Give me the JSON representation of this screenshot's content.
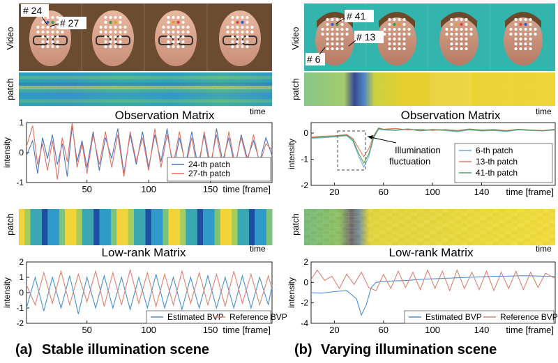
{
  "figure": {
    "left": {
      "video_label": "Video",
      "patch_label_1": "patch",
      "time_label_1": "time",
      "obs_title": "Observation Matrix",
      "patch_label_2": "patch",
      "time_label_2": "time",
      "lowrank_title": "Low-rank Matrix",
      "callouts": [
        "# 24",
        "# 27"
      ],
      "caption_tag": "(a)",
      "caption": "Stable illumination scene"
    },
    "right": {
      "video_label": "Video",
      "patch_label_1": "patch",
      "time_label_1": "time",
      "obs_title": "Observation Matrix",
      "patch_label_2": "patch",
      "time_label_2": "time",
      "lowrank_title": "Low-rank Matrix",
      "callouts": [
        "# 41",
        "# 13",
        "# 6"
      ],
      "annotation": [
        "Illumination",
        "fluctuation"
      ],
      "caption_tag": "(b)",
      "caption": "Varying illumination scene"
    }
  },
  "chart_data": [
    {
      "id": "a-top",
      "type": "line",
      "ylabel": "intensity",
      "xlabel": "time [frame]",
      "xlim": [
        1,
        200
      ],
      "ylim": [
        -1,
        1
      ],
      "xticks": [
        50,
        100,
        150
      ],
      "yticks": [
        -1,
        0,
        1
      ],
      "series": [
        {
          "name": "24-th patch",
          "color": "#4a72c4",
          "x": [
            1,
            6,
            10,
            14,
            18,
            22,
            26,
            30,
            34,
            38,
            42,
            46,
            50,
            55,
            60,
            65,
            70,
            75,
            80,
            85,
            90,
            95,
            100,
            105,
            110,
            115,
            120,
            125,
            130,
            135,
            140,
            145,
            150,
            155,
            160,
            165,
            170,
            175,
            180,
            185,
            190,
            195,
            200
          ],
          "values": [
            -0.1,
            0.4,
            -0.7,
            0.5,
            -0.2,
            0.6,
            -0.4,
            0.3,
            -0.8,
            0.9,
            -0.3,
            0.4,
            -0.5,
            0.7,
            -0.6,
            0.5,
            -0.2,
            0.8,
            -0.7,
            0.6,
            -0.4,
            0.7,
            -0.5,
            0.6,
            -0.3,
            0.8,
            -0.6,
            0.5,
            -0.4,
            0.7,
            -0.5,
            0.6,
            -0.6,
            0.8,
            -0.3,
            0.5,
            -0.5,
            0.6,
            -0.2,
            0.4,
            -0.3,
            0.5,
            -0.1
          ]
        },
        {
          "name": "27-th patch",
          "color": "#e07060",
          "x": [
            1,
            6,
            10,
            14,
            18,
            22,
            26,
            30,
            34,
            38,
            42,
            46,
            50,
            55,
            60,
            65,
            70,
            75,
            80,
            85,
            90,
            95,
            100,
            105,
            110,
            115,
            120,
            125,
            130,
            135,
            140,
            145,
            150,
            155,
            160,
            165,
            170,
            175,
            180,
            185,
            190,
            195,
            200
          ],
          "values": [
            0.2,
            0.9,
            -0.4,
            0.3,
            -0.6,
            0.4,
            -0.9,
            0.5,
            -0.3,
            1.0,
            -0.5,
            0.3,
            -0.7,
            0.6,
            -0.4,
            0.7,
            -0.5,
            0.6,
            -0.8,
            0.7,
            -0.3,
            0.5,
            -0.6,
            0.8,
            -0.5,
            0.6,
            -0.4,
            0.7,
            -0.5,
            0.5,
            -0.7,
            0.7,
            -0.4,
            0.6,
            -0.5,
            0.7,
            -0.4,
            0.5,
            -0.3,
            0.6,
            -0.4,
            0.3,
            0.1
          ]
        }
      ],
      "legend": "bottom-right"
    },
    {
      "id": "b-top",
      "type": "line",
      "ylabel": "intensity",
      "xlabel": "time [frame]",
      "xlim": [
        1,
        200
      ],
      "ylim": [
        -2,
        0.4
      ],
      "xticks": [
        20,
        60,
        100,
        140
      ],
      "yticks": [
        -2,
        -1,
        0
      ],
      "series": [
        {
          "name": "6-th patch",
          "color": "#6fa9d6",
          "x": [
            1,
            10,
            20,
            30,
            35,
            40,
            44,
            48,
            52,
            56,
            60,
            70,
            80,
            90,
            100,
            110,
            120,
            130,
            140,
            150,
            160,
            170,
            180,
            190,
            200
          ],
          "values": [
            -0.2,
            -0.18,
            -0.15,
            -0.1,
            -0.3,
            -0.9,
            -1.3,
            -0.9,
            -0.2,
            0.15,
            0.12,
            0.1,
            0.15,
            0.08,
            0.12,
            0.1,
            0.05,
            0.12,
            0.08,
            0.1,
            0.06,
            0.12,
            0.1,
            0.08,
            0.12
          ]
        },
        {
          "name": "13-th patch",
          "color": "#e07a5f",
          "x": [
            1,
            10,
            20,
            30,
            35,
            40,
            44,
            48,
            52,
            56,
            60,
            70,
            80,
            90,
            100,
            110,
            120,
            130,
            140,
            150,
            160,
            170,
            180,
            190,
            200
          ],
          "values": [
            -0.15,
            -0.12,
            -0.1,
            -0.05,
            -0.2,
            -0.6,
            -0.9,
            -0.6,
            -0.1,
            0.2,
            0.15,
            0.18,
            0.12,
            0.15,
            0.1,
            0.14,
            0.1,
            0.16,
            0.12,
            0.14,
            0.1,
            0.15,
            0.12,
            0.1,
            0.15
          ]
        },
        {
          "name": "41-th patch",
          "color": "#4ea05a",
          "x": [
            1,
            10,
            20,
            30,
            35,
            40,
            44,
            48,
            52,
            56,
            60,
            70,
            80,
            90,
            100,
            110,
            120,
            130,
            140,
            150,
            160,
            170,
            180,
            190,
            200
          ],
          "values": [
            -0.18,
            -0.15,
            -0.12,
            -0.08,
            -0.25,
            -0.8,
            -1.15,
            -0.8,
            -0.15,
            0.18,
            0.14,
            0.12,
            0.16,
            0.1,
            0.14,
            0.12,
            0.08,
            0.14,
            0.1,
            0.12,
            0.08,
            0.14,
            0.11,
            0.09,
            0.13
          ]
        }
      ],
      "legend": "right"
    },
    {
      "id": "a-bottom",
      "type": "line",
      "ylabel": "intensity",
      "xlabel": "time [frame]",
      "xlim": [
        1,
        200
      ],
      "ylim": [
        -2,
        2
      ],
      "xticks": [
        50,
        100,
        150
      ],
      "yticks": [
        -2,
        -1,
        0,
        1,
        2
      ],
      "series": [
        {
          "name": "Estimated BVP",
          "color": "#4a8fd0",
          "x": [
            1,
            8,
            15,
            22,
            29,
            36,
            43,
            50,
            57,
            64,
            71,
            78,
            85,
            92,
            99,
            106,
            113,
            120,
            127,
            134,
            141,
            148,
            155,
            162,
            169,
            176,
            183,
            190,
            197,
            200
          ],
          "values": [
            -1,
            1,
            -1.2,
            1,
            -1,
            1.1,
            -1.4,
            1,
            -1,
            1.1,
            -1,
            1,
            -1.1,
            1,
            -1,
            1.2,
            -1,
            1,
            -1.1,
            1,
            -1,
            1.1,
            -1,
            1,
            -1,
            1.1,
            -1,
            1,
            -0.8,
            0.5
          ]
        },
        {
          "name": "Reference BVP",
          "color": "#e08070",
          "x": [
            1,
            8,
            15,
            22,
            29,
            36,
            43,
            50,
            57,
            64,
            71,
            78,
            85,
            92,
            99,
            106,
            113,
            120,
            127,
            134,
            141,
            148,
            155,
            162,
            169,
            176,
            183,
            190,
            197,
            200
          ],
          "values": [
            0.5,
            -0.8,
            1.3,
            -0.7,
            1.4,
            -0.8,
            1.2,
            -0.6,
            1.4,
            -0.9,
            1.3,
            -0.8,
            1.5,
            -0.7,
            1.3,
            -0.9,
            1.2,
            -0.8,
            1.4,
            -0.7,
            1.3,
            -0.8,
            1.2,
            -0.9,
            1.4,
            -0.7,
            1.2,
            -0.8,
            1.1,
            0.2
          ]
        }
      ],
      "legend": "bottom-right"
    },
    {
      "id": "b-bottom",
      "type": "line",
      "ylabel": "intensity",
      "xlabel": "time [frame]",
      "xlim": [
        1,
        200
      ],
      "ylim": [
        -4,
        2
      ],
      "xticks": [
        20,
        60,
        100,
        140
      ],
      "yticks": [
        -4,
        -2,
        0,
        2
      ],
      "series": [
        {
          "name": "Estimated BVP",
          "color": "#4a8fd0",
          "x": [
            1,
            10,
            20,
            30,
            38,
            42,
            46,
            50,
            54,
            60,
            70,
            80,
            90,
            100,
            110,
            120,
            130,
            140,
            150,
            160,
            170,
            180,
            190,
            200
          ],
          "values": [
            -1,
            -1.05,
            -0.9,
            -0.8,
            -1.6,
            -3.2,
            -2.2,
            -0.5,
            0,
            0.1,
            0.15,
            0.2,
            0.3,
            0.35,
            0.4,
            0.45,
            0.5,
            0.55,
            0.6,
            0.6,
            0.65,
            0.65,
            0.6,
            0.6
          ]
        },
        {
          "name": "Reference BVP",
          "color": "#e08070",
          "x": [
            1,
            6,
            12,
            18,
            24,
            30,
            36,
            42,
            48,
            54,
            60,
            66,
            72,
            78,
            84,
            90,
            96,
            102,
            108,
            114,
            120,
            126,
            132,
            138,
            144,
            150,
            156,
            162,
            168,
            174,
            180,
            186,
            192,
            200
          ],
          "values": [
            0.3,
            1.2,
            0.2,
            0.6,
            -0.6,
            0.8,
            -0.2,
            1.0,
            -0.5,
            -0.8,
            0.8,
            -0.6,
            1.1,
            -0.5,
            1.0,
            -0.7,
            1.2,
            -0.6,
            1.1,
            -0.8,
            1.2,
            -0.6,
            1.0,
            -0.7,
            1.1,
            -0.8,
            1.0,
            -0.6,
            1.1,
            -0.7,
            1.0,
            -0.5,
            0.9,
            0.4
          ]
        }
      ],
      "legend": "bottom-right"
    }
  ]
}
